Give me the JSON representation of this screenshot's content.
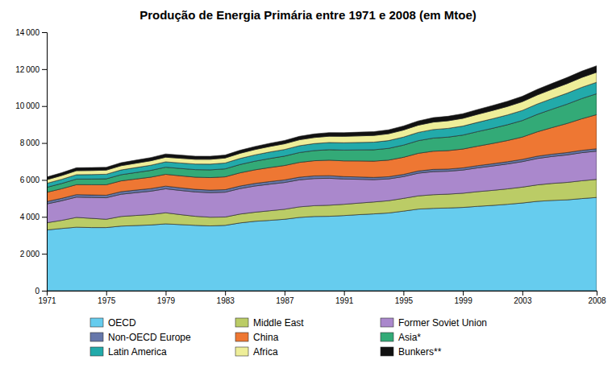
{
  "chart_data": {
    "type": "area",
    "stacked": true,
    "title": "Produção de Energia Primária entre 1971 e 2008 (em Mtoe)",
    "x": [
      1971,
      1972,
      1973,
      1974,
      1975,
      1976,
      1977,
      1978,
      1979,
      1980,
      1981,
      1982,
      1983,
      1984,
      1985,
      1986,
      1987,
      1988,
      1989,
      1990,
      1991,
      1992,
      1993,
      1994,
      1995,
      1996,
      1997,
      1998,
      1999,
      2000,
      2001,
      2002,
      2003,
      2004,
      2005,
      2006,
      2007,
      2008
    ],
    "xlim": [
      1971,
      2008
    ],
    "xticks": [
      1971,
      1975,
      1979,
      1983,
      1987,
      1991,
      1995,
      1999,
      2003,
      2008
    ],
    "ylim": [
      0,
      14000
    ],
    "yticks": [
      0,
      {
        "value": 2000,
        "label": "2 000"
      },
      {
        "value": 4000,
        "label": "4 000"
      },
      {
        "value": 6000,
        "label": "6 000"
      },
      {
        "value": 8000,
        "label": "8 000"
      },
      {
        "value": 10000,
        "label": "10 000"
      },
      {
        "value": 12000,
        "label": "12 000"
      },
      {
        "value": 14000,
        "label": "14 000"
      }
    ],
    "grid": false,
    "legend": "bottom",
    "series": [
      {
        "name": "OECD",
        "color": "#66CCEE",
        "values": [
          3290,
          3370,
          3440,
          3420,
          3420,
          3500,
          3530,
          3560,
          3620,
          3580,
          3540,
          3510,
          3540,
          3670,
          3760,
          3810,
          3870,
          3970,
          4020,
          4030,
          4070,
          4120,
          4160,
          4210,
          4310,
          4420,
          4460,
          4480,
          4510,
          4570,
          4620,
          4680,
          4750,
          4840,
          4890,
          4920,
          4990,
          5050
        ]
      },
      {
        "name": "Middle East",
        "color": "#BBCC66",
        "values": [
          390,
          440,
          530,
          500,
          450,
          520,
          545,
          565,
          600,
          540,
          490,
          470,
          450,
          480,
          490,
          520,
          540,
          570,
          585,
          600,
          610,
          625,
          645,
          665,
          690,
          715,
          740,
          750,
          770,
          795,
          815,
          835,
          860,
          890,
          920,
          945,
          965,
          980
        ]
      },
      {
        "name": "Former Soviet Union",
        "color": "#AA88CC",
        "values": [
          1020,
          1060,
          1100,
          1130,
          1165,
          1205,
          1235,
          1265,
          1300,
          1310,
          1320,
          1330,
          1345,
          1380,
          1420,
          1440,
          1450,
          1465,
          1470,
          1460,
          1370,
          1290,
          1210,
          1180,
          1180,
          1230,
          1250,
          1240,
          1255,
          1290,
          1320,
          1350,
          1380,
          1430,
          1460,
          1490,
          1520,
          1530
        ]
      },
      {
        "name": "Non-OECD Europe",
        "color": "#6677AA",
        "values": [
          130,
          132,
          134,
          135,
          136,
          138,
          140,
          141,
          143,
          142,
          140,
          138,
          137,
          138,
          140,
          141,
          142,
          143,
          143,
          140,
          130,
          125,
          120,
          118,
          117,
          118,
          120,
          119,
          118,
          119,
          120,
          121,
          122,
          123,
          124,
          125,
          126,
          127
        ]
      },
      {
        "name": "China",
        "color": "#EE7733",
        "values": [
          500,
          520,
          540,
          555,
          568,
          585,
          600,
          618,
          640,
          650,
          660,
          678,
          695,
          715,
          735,
          758,
          778,
          802,
          822,
          840,
          852,
          868,
          882,
          900,
          928,
          958,
          985,
          998,
          1020,
          1055,
          1100,
          1148,
          1210,
          1320,
          1440,
          1575,
          1710,
          1850
        ]
      },
      {
        "name": "Asia*",
        "color": "#33AA77",
        "values": [
          270,
          285,
          300,
          308,
          320,
          334,
          350,
          368,
          386,
          398,
          408,
          420,
          432,
          450,
          468,
          490,
          510,
          532,
          550,
          568,
          584,
          598,
          616,
          636,
          660,
          685,
          710,
          732,
          756,
          790,
          822,
          856,
          895,
          945,
          995,
          1045,
          1095,
          1130
        ]
      },
      {
        "name": "Latin America",
        "color": "#22AAAA",
        "values": [
          215,
          225,
          238,
          242,
          248,
          258,
          268,
          278,
          290,
          298,
          302,
          308,
          316,
          328,
          340,
          352,
          358,
          370,
          378,
          388,
          396,
          404,
          412,
          422,
          435,
          449,
          463,
          474,
          487,
          502,
          516,
          530,
          546,
          562,
          578,
          594,
          610,
          622
        ]
      },
      {
        "name": "Africa",
        "color": "#EEEE99",
        "values": [
          195,
          205,
          218,
          220,
          222,
          230,
          237,
          242,
          250,
          254,
          257,
          262,
          270,
          280,
          290,
          300,
          310,
          322,
          330,
          340,
          347,
          354,
          362,
          370,
          380,
          390,
          402,
          410,
          420,
          434,
          447,
          460,
          474,
          490,
          504,
          520,
          534,
          542
        ]
      },
      {
        "name": "Bunkers**",
        "color": "#111111",
        "values": [
          148,
          153,
          160,
          158,
          156,
          163,
          168,
          173,
          178,
          173,
          168,
          166,
          163,
          166,
          168,
          173,
          180,
          188,
          194,
          198,
          200,
          203,
          206,
          213,
          222,
          232,
          242,
          245,
          252,
          262,
          272,
          282,
          292,
          305,
          317,
          329,
          342,
          352
        ]
      }
    ]
  }
}
